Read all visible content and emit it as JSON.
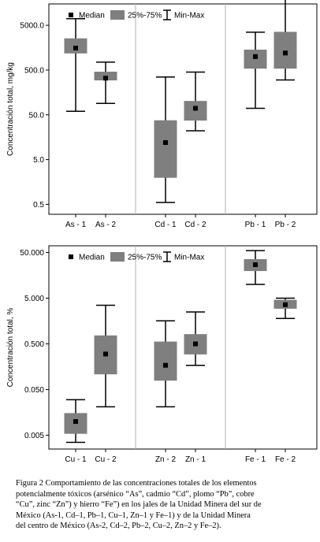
{
  "chart_data": [
    {
      "type": "boxplot",
      "ylabel": "Concentración total, mg/kg",
      "yscale": "log",
      "ylim": [
        0.3,
        15000
      ],
      "yticks": [
        5000,
        500,
        50,
        5,
        0.5
      ],
      "ytick_labels": [
        "5000.0",
        "500.0",
        "50.0",
        "5.0",
        "0.5"
      ],
      "legend": {
        "position": "top",
        "items": [
          "Median",
          "25%-75%",
          "Min-Max"
        ]
      },
      "groups": [
        {
          "categories": [
            "As - 1",
            "As - 2"
          ]
        },
        {
          "categories": [
            "Cd - 1",
            "Cd - 2"
          ]
        },
        {
          "categories": [
            "Pb - 1",
            "Pb - 2"
          ]
        }
      ],
      "boxes": [
        {
          "category": "As - 1",
          "min": 60,
          "q1": 1200,
          "median": 1550,
          "q3": 2500,
          "max": 7000
        },
        {
          "category": "As - 2",
          "min": 90,
          "q1": 300,
          "median": 330,
          "q3": 450,
          "max": 750
        },
        {
          "category": "Cd - 1",
          "min": 0.55,
          "q1": 2.0,
          "median": 12,
          "q3": 37,
          "max": 350
        },
        {
          "category": "Cd - 2",
          "min": 22,
          "q1": 38,
          "median": 70,
          "q3": 100,
          "max": 450
        },
        {
          "category": "Pb - 1",
          "min": 70,
          "q1": 550,
          "median": 1000,
          "q3": 1400,
          "max": 3500
        },
        {
          "category": "Pb - 2",
          "min": 300,
          "q1": 550,
          "median": 1200,
          "q3": 3500,
          "max": 25000
        }
      ]
    },
    {
      "type": "boxplot",
      "ylabel": "Concentración total, %",
      "yscale": "log",
      "ylim": [
        0.0025,
        70
      ],
      "yticks": [
        50,
        5,
        0.5,
        0.05,
        0.005
      ],
      "ytick_labels": [
        "50.000",
        "5.000",
        "0.500",
        "0.050",
        "0.005"
      ],
      "legend": {
        "position": "top",
        "items": [
          "Median",
          "25%-75%",
          "Min-Max"
        ]
      },
      "groups": [
        {
          "categories": [
            "Cu - 1",
            "Cu - 2"
          ]
        },
        {
          "categories": [
            "Zn - 2",
            "Zn - 1"
          ]
        },
        {
          "categories": [
            "Fe - 1",
            "Fe - 2"
          ]
        }
      ],
      "boxes": [
        {
          "category": "Cu - 1",
          "min": 0.0035,
          "q1": 0.0055,
          "median": 0.01,
          "q3": 0.015,
          "max": 0.03
        },
        {
          "category": "Cu - 2",
          "min": 0.021,
          "q1": 0.11,
          "median": 0.3,
          "q3": 0.75,
          "max": 3.5
        },
        {
          "category": "Zn - 2",
          "min": 0.021,
          "q1": 0.08,
          "median": 0.17,
          "q3": 0.55,
          "max": 1.6
        },
        {
          "category": "Zn - 1",
          "min": 0.17,
          "q1": 0.3,
          "median": 0.5,
          "q3": 0.8,
          "max": 2.5
        },
        {
          "category": "Fe - 1",
          "min": 10,
          "q1": 20,
          "median": 27,
          "q3": 35,
          "max": 55
        },
        {
          "category": "Fe - 2",
          "min": 1.8,
          "q1": 3.0,
          "median": 3.6,
          "q3": 4.5,
          "max": 5.0
        }
      ]
    }
  ],
  "caption_lines": [
    "Figura 2  Comportamiento de las concentraciones totales de los elementos",
    "potencialmente tóxicos (arsénico “As”, cadmio “Cd”, plomo “Pb”, cobre",
    "“Cu”, zinc “Zn”) y hierro “Fe”) en los jales de la Unidad Minera del sur de",
    "México (As-1, Cd–1, Pb–1, Cu–1, Zn–1 y Fe–1) y de la Unidad Minera",
    "del centro de México (As-2, Cd–2, Pb–2, Cu–2, Zn–2 y Fe–2)."
  ],
  "colors": {
    "box_fill": "#7f7f7f",
    "marker": "#000000",
    "axis": "#000000",
    "separator": "#b0b0b0",
    "background": "#ffffff"
  }
}
